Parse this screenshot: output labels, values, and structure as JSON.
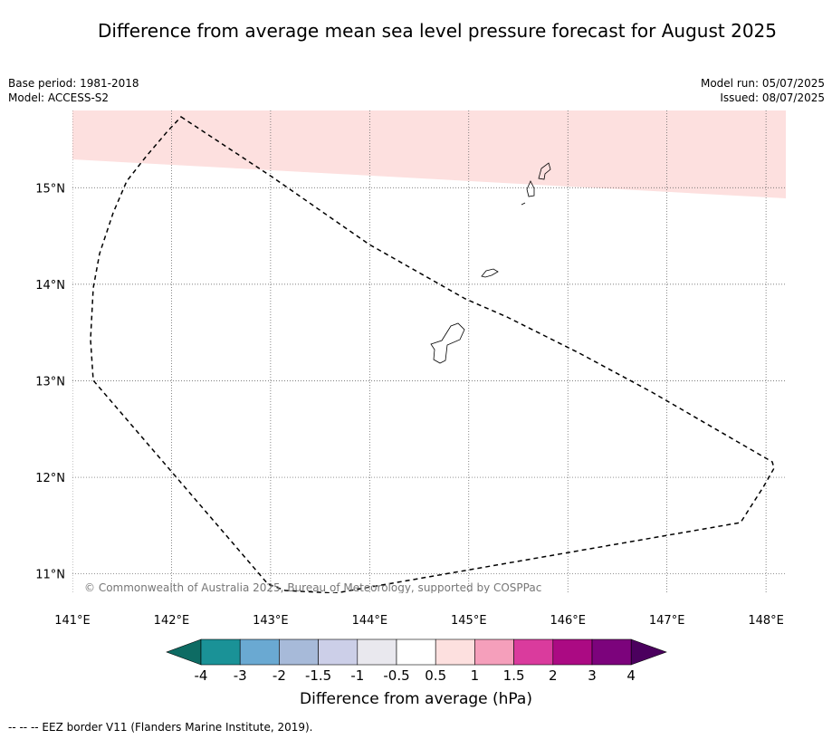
{
  "title": "Difference from average mean sea level pressure forecast for August 2025",
  "meta_left": [
    "Base period: 1981-2018",
    "Model: ACCESS-S2"
  ],
  "meta_right": [
    "Model run: 05/07/2025",
    "Issued: 08/07/2025"
  ],
  "map": {
    "lon_range": [
      141,
      148.2
    ],
    "lat_range": [
      10.8,
      15.8
    ],
    "lon_ticks": [
      "141°E",
      "142°E",
      "143°E",
      "144°E",
      "145°E",
      "146°E",
      "147°E",
      "148°E"
    ],
    "lat_ticks": [
      "15°N",
      "14°N",
      "13°N",
      "12°N",
      "11°N"
    ],
    "anomaly_band": {
      "category": "0.5 to 1",
      "color": "#fde0df"
    },
    "eez_border_style": "dashed",
    "copyright": "© Commonwealth of Australia 2025, Bureau of Meteorology, supported by COSPPac"
  },
  "colorbar": {
    "title": "Difference from average (hPa)",
    "labels": [
      "-4",
      "-3",
      "-2",
      "-1.5",
      "-1",
      "-0.5",
      "0.5",
      "1",
      "1.5",
      "2",
      "3",
      "4"
    ],
    "colors": [
      "#1a9297",
      "#6aa9d2",
      "#a7bad9",
      "#cccfe8",
      "#e9e8ee",
      "#ffffff",
      "#fde0df",
      "#f59fbb",
      "#da3b9d",
      "#ab0a83",
      "#7c037c"
    ],
    "extend_low_color": "#0d6b63",
    "extend_high_color": "#4b005e"
  },
  "footer": "--  --  -- EEZ border V11 (Flanders Marine Institute, 2019)."
}
